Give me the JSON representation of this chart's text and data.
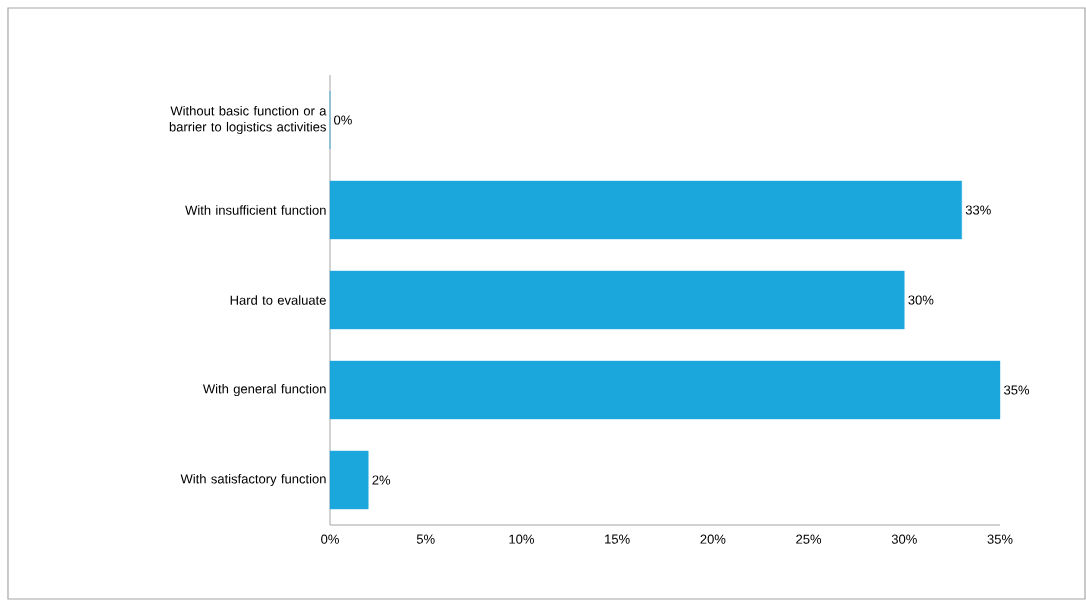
{
  "chart_data": {
    "type": "bar",
    "orientation": "horizontal",
    "categories": [
      "Without basic function or a barrier to logistics activities",
      "With insufficient function",
      "Hard to evaluate",
      "With general function",
      "With satisfactory function"
    ],
    "values": [
      0,
      33,
      30,
      35,
      2
    ],
    "value_labels": [
      "0%",
      "33%",
      "30%",
      "35%",
      "2%"
    ],
    "color": "#1ba6dc",
    "xlim": [
      0,
      35
    ],
    "xticks": [
      {
        "value": 0,
        "label": "0%"
      },
      {
        "value": 5,
        "label": "5%"
      },
      {
        "value": 10,
        "label": "10%"
      },
      {
        "value": 15,
        "label": "15%"
      },
      {
        "value": 20,
        "label": "20%"
      },
      {
        "value": 25,
        "label": "25%"
      },
      {
        "value": 30,
        "label": "30%"
      },
      {
        "value": 35,
        "label": "35%"
      }
    ],
    "grid": false
  }
}
